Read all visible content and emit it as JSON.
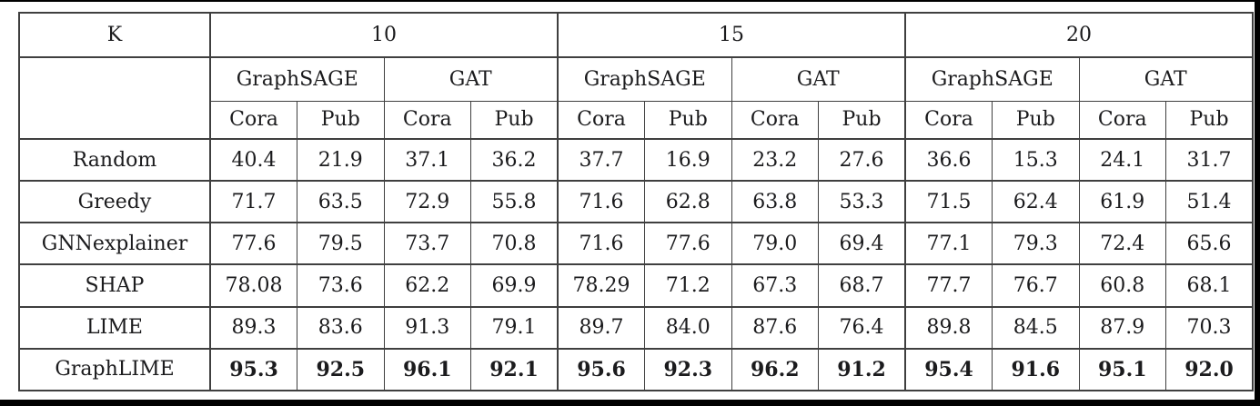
{
  "page": {
    "colors": {
      "background": "#ffffff",
      "table_border": "#3f3f3f",
      "text": "#1b1b1d",
      "page_edge": "#000000"
    }
  },
  "chart_data": {
    "type": "table",
    "corner_label": "K",
    "k_groups": [
      {
        "k": "10",
        "models": [
          "GraphSAGE",
          "GAT"
        ]
      },
      {
        "k": "15",
        "models": [
          "GraphSAGE",
          "GAT"
        ]
      },
      {
        "k": "20",
        "models": [
          "GraphSAGE",
          "GAT"
        ]
      }
    ],
    "dataset_labels": [
      "Cora",
      "Pub"
    ],
    "rows": [
      {
        "method": "Random",
        "bold": false,
        "values": [
          "40.4",
          "21.9",
          "37.1",
          "36.2",
          "37.7",
          "16.9",
          "23.2",
          "27.6",
          "36.6",
          "15.3",
          "24.1",
          "31.7"
        ]
      },
      {
        "method": "Greedy",
        "bold": false,
        "values": [
          "71.7",
          "63.5",
          "72.9",
          "55.8",
          "71.6",
          "62.8",
          "63.8",
          "53.3",
          "71.5",
          "62.4",
          "61.9",
          "51.4"
        ]
      },
      {
        "method": "GNNexplainer",
        "bold": false,
        "values": [
          "77.6",
          "79.5",
          "73.7",
          "70.8",
          "71.6",
          "77.6",
          "79.0",
          "69.4",
          "77.1",
          "79.3",
          "72.4",
          "65.6"
        ]
      },
      {
        "method": "SHAP",
        "bold": false,
        "values": [
          "78.08",
          "73.6",
          "62.2",
          "69.9",
          "78.29",
          "71.2",
          "67.3",
          "68.7",
          "77.7",
          "76.7",
          "60.8",
          "68.1"
        ]
      },
      {
        "method": "LIME",
        "bold": false,
        "values": [
          "89.3",
          "83.6",
          "91.3",
          "79.1",
          "89.7",
          "84.0",
          "87.6",
          "76.4",
          "89.8",
          "84.5",
          "87.9",
          "70.3"
        ]
      },
      {
        "method": "GraphLIME",
        "bold": true,
        "values": [
          "95.3",
          "92.5",
          "96.1",
          "92.1",
          "95.6",
          "92.3",
          "96.2",
          "91.2",
          "95.4",
          "91.6",
          "95.1",
          "92.0"
        ]
      }
    ]
  }
}
